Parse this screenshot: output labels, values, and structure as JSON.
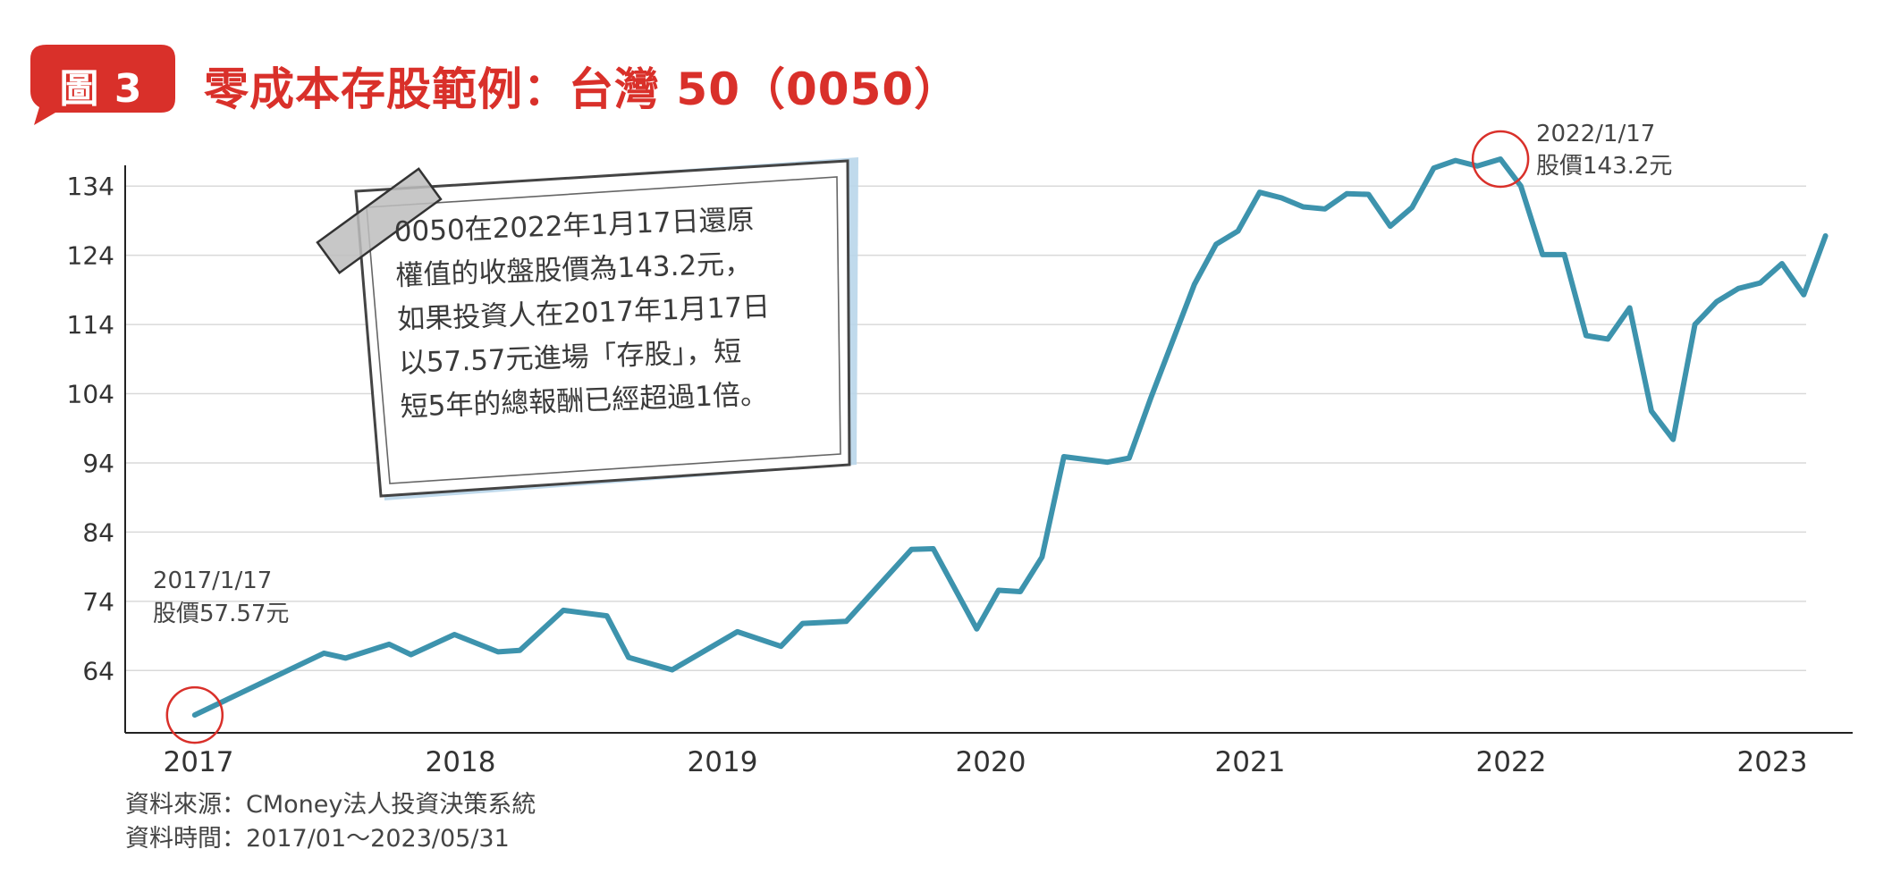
{
  "header": {
    "badge": "圖 3",
    "title": "零成本存股範例：台灣 50（0050）"
  },
  "note": {
    "lines": [
      "0050在2022年1月17日還原",
      "權值的收盤股價為143.2元，",
      "如果投資人在2017年1月17日",
      "以57.57元進場「存股」，短",
      "短5年的總報酬已經超過1倍。"
    ]
  },
  "annotations": [
    {
      "date_line": "2017/1/17",
      "price_line": "股價57.57元"
    },
    {
      "date_line": "2022/1/17",
      "price_line": "股價143.2元"
    }
  ],
  "source": {
    "line1": "資料來源：CMoney法人投資決策系統",
    "line2": "資料時間：2017/01～2023/05/31"
  },
  "colors": {
    "line": "#3d93ad",
    "accent": "#d9302a",
    "grid": "#d9d9d9",
    "note_shadow": "#b9d6ea"
  },
  "chart_data": {
    "type": "line",
    "title": "零成本存股範例：台灣 50（0050）",
    "xlabel": "",
    "ylabel": "",
    "x_ticks": [
      "2017",
      "2018",
      "2019",
      "2020",
      "2021",
      "2022",
      "2023"
    ],
    "y_ticks": [
      64,
      74,
      84,
      94,
      104,
      114,
      124,
      134
    ],
    "ylim": [
      55,
      137
    ],
    "xlim": [
      "2017-01",
      "2023-05"
    ],
    "grid": true,
    "series": [
      {
        "name": "",
        "points": [
          [
            "2017-01-17",
            57.57
          ],
          [
            "2017-04",
            62
          ],
          [
            "2017-07",
            66.5
          ],
          [
            "2017-08",
            65.8
          ],
          [
            "2017-10",
            67.8
          ],
          [
            "2017-11",
            66.3
          ],
          [
            "2018-01",
            69.2
          ],
          [
            "2018-03",
            66.7
          ],
          [
            "2018-04",
            66.9
          ],
          [
            "2018-06",
            72.7
          ],
          [
            "2018-08",
            71.9
          ],
          [
            "2018-09",
            65.9
          ],
          [
            "2018-11",
            64.1
          ],
          [
            "2019-02",
            69.6
          ],
          [
            "2019-04",
            67.5
          ],
          [
            "2019-05",
            70.8
          ],
          [
            "2019-07",
            71.1
          ],
          [
            "2019-10",
            81.5
          ],
          [
            "2019-11",
            81.6
          ],
          [
            "2020-01",
            70
          ],
          [
            "2020-02",
            75.6
          ],
          [
            "2020-03",
            75.4
          ],
          [
            "2020-04",
            80.4
          ],
          [
            "2020-05",
            94.9
          ],
          [
            "2020-07",
            94.1
          ],
          [
            "2020-08",
            94.7
          ],
          [
            "2020-09",
            103.4
          ],
          [
            "2020-11",
            119.8
          ],
          [
            "2020-12",
            125.6
          ],
          [
            "2021-01",
            127.5
          ],
          [
            "2021-02",
            133.1
          ],
          [
            "2021-03",
            132.3
          ],
          [
            "2021-04",
            131
          ],
          [
            "2021-05",
            130.7
          ],
          [
            "2021-06",
            132.9
          ],
          [
            "2021-07",
            132.8
          ],
          [
            "2021-08",
            128.2
          ],
          [
            "2021-09",
            130.9
          ],
          [
            "2021-10",
            136.6
          ],
          [
            "2021-11",
            137.7
          ],
          [
            "2021-12",
            136.9
          ],
          [
            "2022-01-17",
            143.2
          ],
          [
            "2022-02",
            134
          ],
          [
            "2022-03",
            124.1
          ],
          [
            "2022-04",
            124.1
          ],
          [
            "2022-05",
            112.4
          ],
          [
            "2022-06",
            111.9
          ],
          [
            "2022-07",
            116.4
          ],
          [
            "2022-08",
            101.5
          ],
          [
            "2022-09",
            97.4
          ],
          [
            "2022-10",
            114
          ],
          [
            "2022-11",
            117.3
          ],
          [
            "2022-12",
            119.2
          ],
          [
            "2023-01",
            120
          ],
          [
            "2023-02",
            122.8
          ],
          [
            "2023-03",
            118.3
          ],
          [
            "2023-04",
            126.8
          ]
        ]
      }
    ],
    "highlighted_points": [
      "2017-01-17",
      "2022-01-17"
    ]
  }
}
